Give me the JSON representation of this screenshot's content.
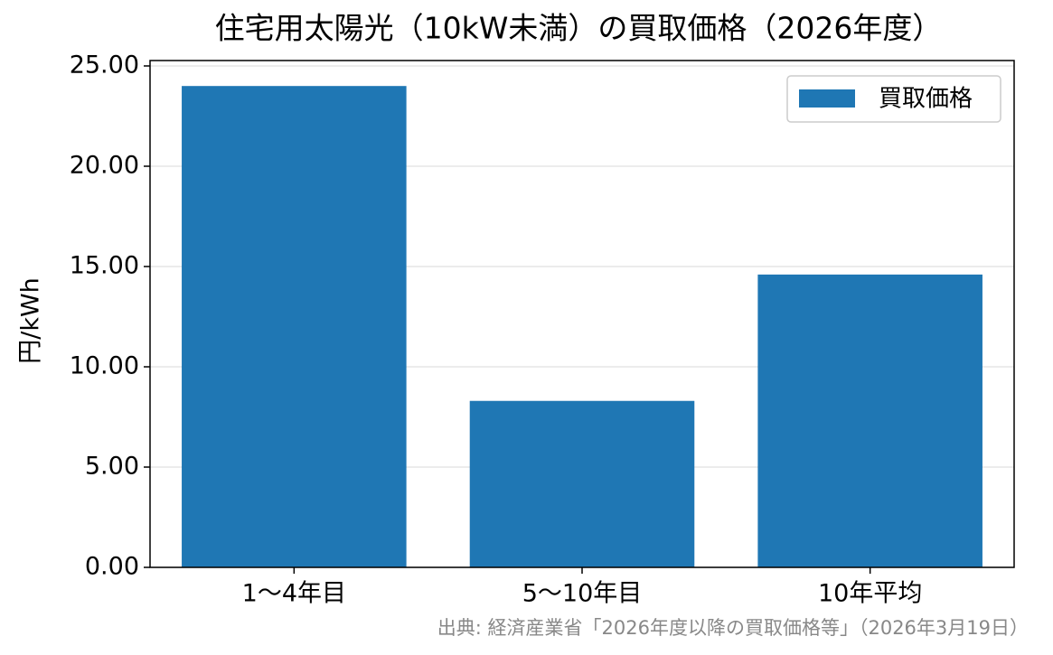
{
  "chart_data": {
    "type": "bar",
    "title": "住宅用太陽光（10kW未満）の買取価格（2026年度）",
    "y_label": "円/kWh",
    "note": "出典: 経済産業省「2026年度以降の買取価格等」（2026年3月19日）",
    "categories": [
      "1〜4年目",
      "5〜10年目",
      "10年平均"
    ],
    "series": [
      {
        "name": "買取価格",
        "color": "#1f77b4",
        "values": [
          24,
          8.3,
          14.6
        ]
      }
    ],
    "ylim": [
      0,
      25.27
    ],
    "yticks": [
      {
        "value": 0,
        "label": "0.00"
      },
      {
        "value": 5,
        "label": "5.00"
      },
      {
        "value": 10,
        "label": "10.00"
      },
      {
        "value": 15,
        "label": "15.00"
      },
      {
        "value": 20,
        "label": "20.00"
      },
      {
        "value": 25,
        "label": "25.00"
      }
    ],
    "grid": true,
    "legend": "upper right"
  }
}
